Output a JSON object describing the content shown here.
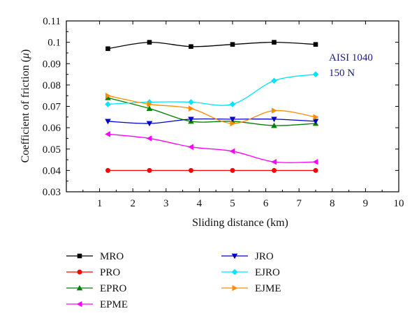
{
  "chart_data": {
    "type": "line",
    "title": "",
    "xlabel": "Sliding distance (km)",
    "ylabel_main": "Coefficient of friction (",
    "ylabel_symbol": "μ",
    "ylabel_end": ")",
    "xlim": [
      0,
      10
    ],
    "ylim": [
      0.03,
      0.11
    ],
    "xticks": [
      1,
      2,
      3,
      4,
      5,
      6,
      7,
      8,
      9,
      10
    ],
    "yticks": [
      0.03,
      0.04,
      0.05,
      0.06,
      0.07,
      0.08,
      0.09,
      0.1,
      0.11
    ],
    "ytick_labels": [
      "0.03",
      "0.04",
      "0.05",
      "0.06",
      "0.07",
      "0.08",
      "0.09",
      "0.1",
      "0.11"
    ],
    "grid": false,
    "legend_position": "below",
    "annotations": [
      "AISI 1040",
      "150 N"
    ],
    "x": [
      1.25,
      2.5,
      3.75,
      5,
      6.25,
      7.5
    ],
    "series": [
      {
        "name": "MRO",
        "color": "#000000",
        "marker": "square",
        "values": [
          0.097,
          0.1,
          0.098,
          0.099,
          0.1,
          0.099
        ]
      },
      {
        "name": "PRO",
        "color": "#ff0000",
        "marker": "circle",
        "values": [
          0.04,
          0.04,
          0.04,
          0.04,
          0.04,
          0.04
        ]
      },
      {
        "name": "EPRO",
        "color": "#008000",
        "marker": "triangle-up",
        "values": [
          0.074,
          0.069,
          0.063,
          0.063,
          0.061,
          0.062
        ]
      },
      {
        "name": "EPME",
        "color": "#ff00ff",
        "marker": "triangle-left",
        "values": [
          0.057,
          0.055,
          0.051,
          0.049,
          0.044,
          0.044
        ]
      },
      {
        "name": "JRO",
        "color": "#0000cc",
        "marker": "triangle-down",
        "values": [
          0.063,
          0.062,
          0.064,
          0.064,
          0.064,
          0.063
        ]
      },
      {
        "name": "EJRO",
        "color": "#00e5ff",
        "marker": "diamond",
        "values": [
          0.071,
          0.072,
          0.072,
          0.071,
          0.082,
          0.085
        ]
      },
      {
        "name": "EJME",
        "color": "#ff8c00",
        "marker": "triangle-right",
        "values": [
          0.075,
          0.071,
          0.069,
          0.062,
          0.068,
          0.065
        ]
      }
    ]
  }
}
